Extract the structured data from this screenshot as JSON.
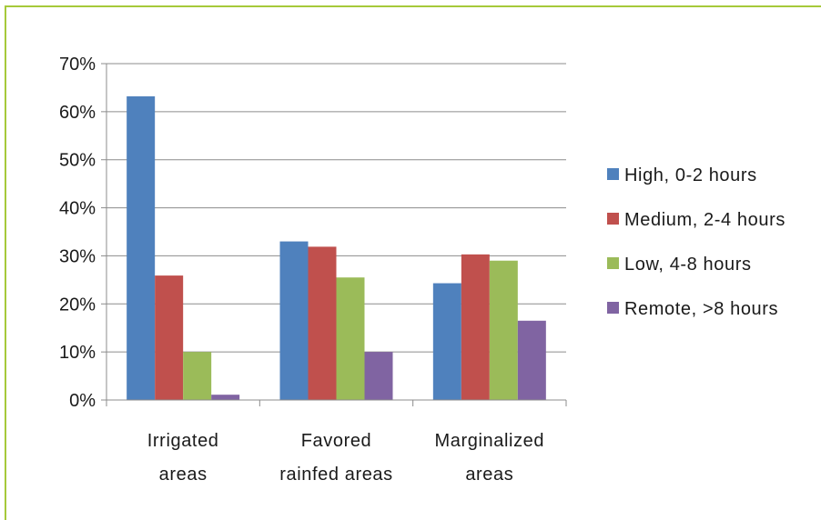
{
  "colors": {
    "frame": "#a6c93a",
    "grid": "#8c8c8c",
    "axis": "#8c8c8c"
  },
  "chart_data": {
    "type": "bar",
    "title": "",
    "xlabel": "",
    "ylabel": "",
    "categories": [
      [
        "Irrigated",
        "areas"
      ],
      [
        "Favored",
        "rainfed areas"
      ],
      [
        "Marginalized",
        "areas"
      ]
    ],
    "ylim": [
      0,
      70
    ],
    "yticks": [
      0,
      10,
      20,
      30,
      40,
      50,
      60,
      70
    ],
    "ytick_labels": [
      "0%",
      "10%",
      "20%",
      "30%",
      "40%",
      "50%",
      "60%",
      "70%"
    ],
    "grid": true,
    "legend_position": "right",
    "series": [
      {
        "name": "High, 0-2 hours",
        "color": "#4f81bd",
        "values": [
          63.2,
          33.0,
          24.3
        ]
      },
      {
        "name": "Medium, 2-4 hours",
        "color": "#c0504d",
        "values": [
          25.9,
          31.9,
          30.3
        ]
      },
      {
        "name": "Low, 4-8 hours",
        "color": "#9bbb59",
        "values": [
          10.0,
          25.5,
          29.0
        ]
      },
      {
        "name": "Remote, >8 hours",
        "color": "#8064a2",
        "values": [
          1.1,
          10.0,
          16.5
        ]
      }
    ]
  }
}
